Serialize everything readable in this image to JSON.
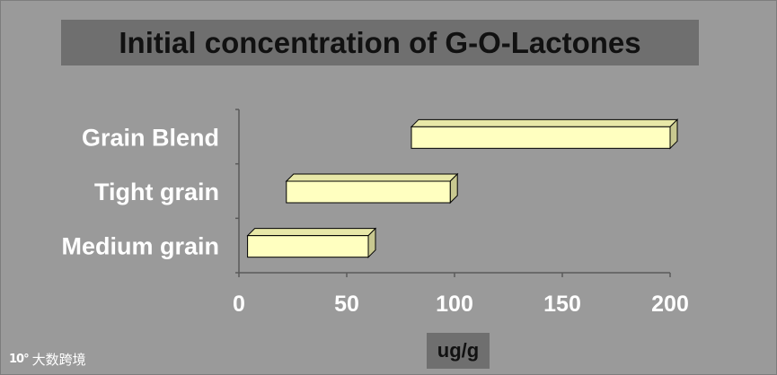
{
  "chart_data": {
    "type": "bar",
    "orientation": "horizontal",
    "style": "floating-range-3d",
    "title": "Initial concentration of G-O-Lactones",
    "xlabel": "ug/g",
    "ylabel": "",
    "categories": [
      "Grain Blend",
      "Tight grain",
      "Medium grain"
    ],
    "ranges": [
      {
        "category": "Grain Blend",
        "start": 80,
        "end": 200
      },
      {
        "category": "Tight grain",
        "start": 22,
        "end": 98
      },
      {
        "category": "Medium grain",
        "start": 4,
        "end": 60
      }
    ],
    "xlim": [
      0,
      200
    ],
    "xticks": [
      "0",
      "50",
      "100",
      "150",
      "200"
    ],
    "grid": false,
    "legend": "none",
    "colors": {
      "background": "#9a9a9a",
      "bar_face": "#ffffc0",
      "bar_top": "#e8e8a8",
      "bar_side": "#c8c890",
      "bar_outline": "#000000",
      "title_box": "#6f6f6f",
      "axis": "#5a5a5a",
      "label_text": "#ffffff"
    }
  },
  "watermark": {
    "logo": "10°",
    "text": "大数跨境"
  }
}
